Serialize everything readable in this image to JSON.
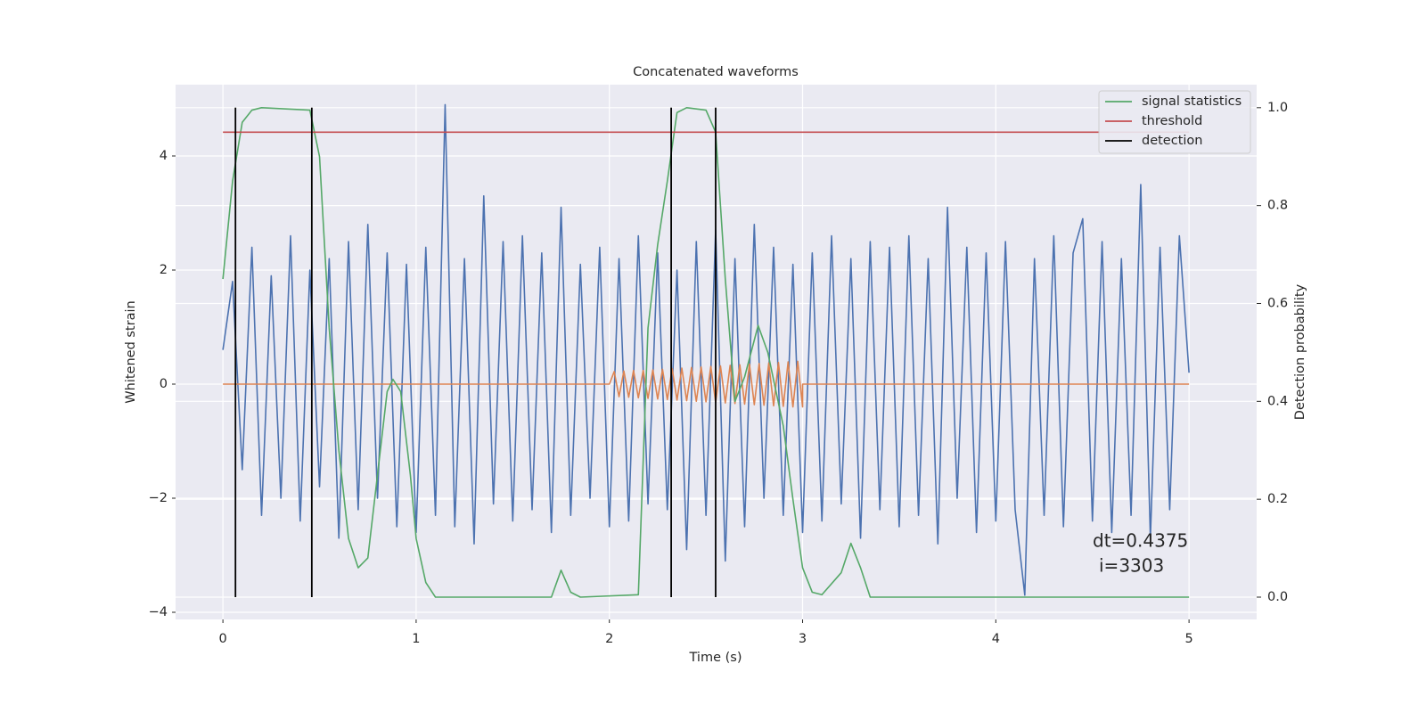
{
  "chart_data": {
    "type": "line",
    "title": "Concatenated waveforms",
    "x_label": "Time (s)",
    "y_label": "Whitened strain",
    "y2_label": "Detection probability",
    "annotation": [
      "dt=0.4375",
      "i=3303"
    ],
    "xlim": [
      -0.245,
      5.35
    ],
    "ylim": [
      -4.125,
      5.25
    ],
    "y2lim": [
      -0.0455,
      1.047
    ],
    "xticks": [
      0,
      1,
      2,
      3,
      4,
      5
    ],
    "yticks": [
      {
        "value": -4,
        "label": "−4"
      },
      {
        "value": -2,
        "label": "−2"
      },
      0,
      2,
      4
    ],
    "y2ticks": [
      {
        "value": 0,
        "label": "0.0"
      },
      0.2,
      0.4,
      0.6,
      0.8,
      {
        "value": 1,
        "label": "1.0"
      }
    ],
    "grid": true,
    "legend": "upper right",
    "series": [
      {
        "color": "#4c72b0",
        "axis": "y",
        "x": [
          0,
          0.05,
          0.1,
          0.15,
          0.2,
          0.25,
          0.3,
          0.35,
          0.4,
          0.45,
          0.5,
          0.55,
          0.6,
          0.65,
          0.7,
          0.75,
          0.8,
          0.85,
          0.9,
          0.95,
          1,
          1.05,
          1.1,
          1.15,
          1.2,
          1.25,
          1.3,
          1.35,
          1.4,
          1.45,
          1.5,
          1.55,
          1.6,
          1.65,
          1.7,
          1.75,
          1.8,
          1.85,
          1.9,
          1.95,
          2,
          2.05,
          2.1,
          2.15,
          2.2,
          2.25,
          2.3,
          2.35,
          2.4,
          2.45,
          2.5,
          2.55,
          2.6,
          2.65,
          2.7,
          2.75,
          2.8,
          2.85,
          2.9,
          2.95,
          3,
          3.05,
          3.1,
          3.15,
          3.2,
          3.25,
          3.3,
          3.35,
          3.4,
          3.45,
          3.5,
          3.55,
          3.6,
          3.65,
          3.7,
          3.75,
          3.8,
          3.85,
          3.9,
          3.95,
          4,
          4.05,
          4.1,
          4.15,
          4.2,
          4.25,
          4.3,
          4.35,
          4.4,
          4.45,
          4.5,
          4.55,
          4.6,
          4.65,
          4.7,
          4.75,
          4.8,
          4.85,
          4.9,
          4.95,
          5
        ],
        "values": [
          0.6,
          1.8,
          -1.5,
          2.4,
          -2.3,
          1.9,
          -2.0,
          2.6,
          -2.4,
          2.0,
          -1.8,
          2.2,
          -2.7,
          2.5,
          -2.2,
          2.8,
          -2.0,
          2.3,
          -2.5,
          2.1,
          -2.6,
          2.4,
          -2.3,
          4.9,
          -2.5,
          2.2,
          -2.8,
          3.3,
          -2.1,
          2.5,
          -2.4,
          2.6,
          -2.2,
          2.3,
          -2.6,
          3.1,
          -2.3,
          2.1,
          -2.0,
          2.4,
          -2.5,
          2.2,
          -2.4,
          2.6,
          -2.1,
          2.3,
          -2.2,
          2.0,
          -2.9,
          2.5,
          -2.3,
          2.7,
          -3.1,
          2.2,
          -2.5,
          2.8,
          -2.0,
          2.4,
          -2.3,
          2.1,
          -2.6,
          2.3,
          -2.4,
          2.6,
          -2.1,
          2.2,
          -2.7,
          2.5,
          -2.2,
          2.4,
          -2.5,
          2.6,
          -2.3,
          2.2,
          -2.8,
          3.1,
          -2.0,
          2.4,
          -2.6,
          2.3,
          -2.4,
          2.5,
          -2.2,
          -3.7,
          2.2,
          -2.3,
          2.6,
          -2.5,
          2.3,
          2.9,
          -2.4,
          2.5,
          -2.6,
          2.2,
          -2.3,
          3.5,
          -2.7,
          2.4,
          -2.2,
          2.6,
          0.2
        ]
      },
      {
        "color": "#dd8452",
        "axis": "y",
        "x": [
          0,
          2,
          2.025,
          2.05,
          2.075,
          2.1,
          2.125,
          2.15,
          2.175,
          2.2,
          2.225,
          2.25,
          2.275,
          2.3,
          2.325,
          2.35,
          2.375,
          2.4,
          2.425,
          2.45,
          2.475,
          2.5,
          2.525,
          2.55,
          2.575,
          2.6,
          2.625,
          2.65,
          2.675,
          2.7,
          2.725,
          2.75,
          2.775,
          2.8,
          2.825,
          2.85,
          2.875,
          2.9,
          2.925,
          2.95,
          2.975,
          3,
          3,
          5
        ],
        "values": [
          0,
          0,
          0.22,
          -0.22,
          0.23,
          -0.23,
          0.24,
          -0.24,
          0.24,
          -0.25,
          0.25,
          -0.26,
          0.26,
          -0.27,
          0.27,
          -0.28,
          0.28,
          -0.29,
          0.29,
          -0.3,
          0.3,
          -0.31,
          0.31,
          -0.32,
          0.32,
          -0.33,
          0.33,
          -0.34,
          0.34,
          -0.35,
          0.35,
          -0.36,
          0.36,
          -0.37,
          0.37,
          -0.38,
          0.38,
          -0.39,
          0.39,
          -0.4,
          0.4,
          -0.4,
          0,
          0
        ]
      },
      {
        "name": "signal statistics",
        "color": "#55a868",
        "axis": "y2",
        "x": [
          0,
          0.05,
          0.1,
          0.15,
          0.2,
          0.45,
          0.5,
          0.55,
          0.6,
          0.65,
          0.7,
          0.75,
          0.8,
          0.85,
          0.88,
          0.92,
          0.97,
          1.0,
          1.05,
          1.1,
          1.7,
          1.75,
          1.8,
          1.85,
          2.15,
          2.2,
          2.25,
          2.3,
          2.35,
          2.4,
          2.5,
          2.55,
          2.6,
          2.65,
          2.7,
          2.77,
          2.82,
          2.9,
          2.95,
          3.0,
          3.05,
          3.1,
          3.2,
          3.25,
          3.3,
          3.35,
          5.0
        ],
        "values": [
          0.65,
          0.85,
          0.97,
          0.995,
          1.0,
          0.995,
          0.9,
          0.55,
          0.3,
          0.12,
          0.06,
          0.08,
          0.25,
          0.42,
          0.445,
          0.42,
          0.25,
          0.12,
          0.03,
          0.0,
          0.0,
          0.055,
          0.01,
          0.0,
          0.005,
          0.55,
          0.72,
          0.85,
          0.99,
          1.0,
          0.995,
          0.95,
          0.65,
          0.4,
          0.45,
          0.555,
          0.5,
          0.35,
          0.2,
          0.06,
          0.01,
          0.005,
          0.05,
          0.11,
          0.06,
          0.0,
          0.0
        ]
      },
      {
        "name": "threshold",
        "color": "#c44e52",
        "axis": "y2",
        "x": [
          0,
          5
        ],
        "values": [
          0.95,
          0.95
        ]
      },
      {
        "name": "detection",
        "color": "#000000",
        "axis": "y2",
        "style": "vlines",
        "x": [
          0.065,
          0.46,
          2.32,
          2.55
        ],
        "span": [
          0,
          1
        ]
      }
    ]
  }
}
